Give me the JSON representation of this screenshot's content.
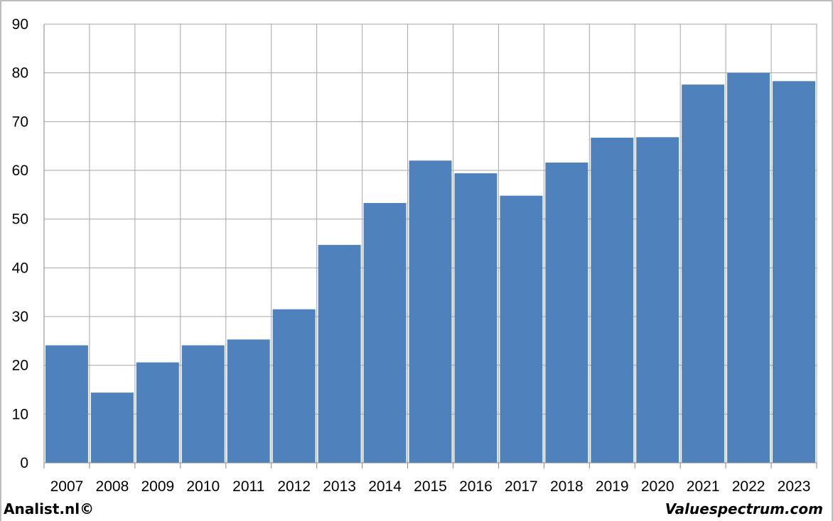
{
  "chart_data": {
    "type": "bar",
    "categories": [
      "2007",
      "2008",
      "2009",
      "2010",
      "2011",
      "2012",
      "2013",
      "2014",
      "2015",
      "2016",
      "2017",
      "2018",
      "2019",
      "2020",
      "2021",
      "2022",
      "2023"
    ],
    "values": [
      24.1,
      14.4,
      20.6,
      24.1,
      25.3,
      31.5,
      44.7,
      53.3,
      62.0,
      59.4,
      54.8,
      61.6,
      66.7,
      66.8,
      77.6,
      80.0,
      78.3
    ],
    "ylim": [
      0,
      90
    ],
    "yticks": [
      0,
      10,
      20,
      30,
      40,
      50,
      60,
      70,
      80,
      90
    ],
    "grid": true,
    "bar_color": "#4f81bd",
    "grid_color": "#a6a6a6"
  },
  "footer": {
    "left": "Analist.nl©",
    "right": "Valuespectrum.com"
  }
}
